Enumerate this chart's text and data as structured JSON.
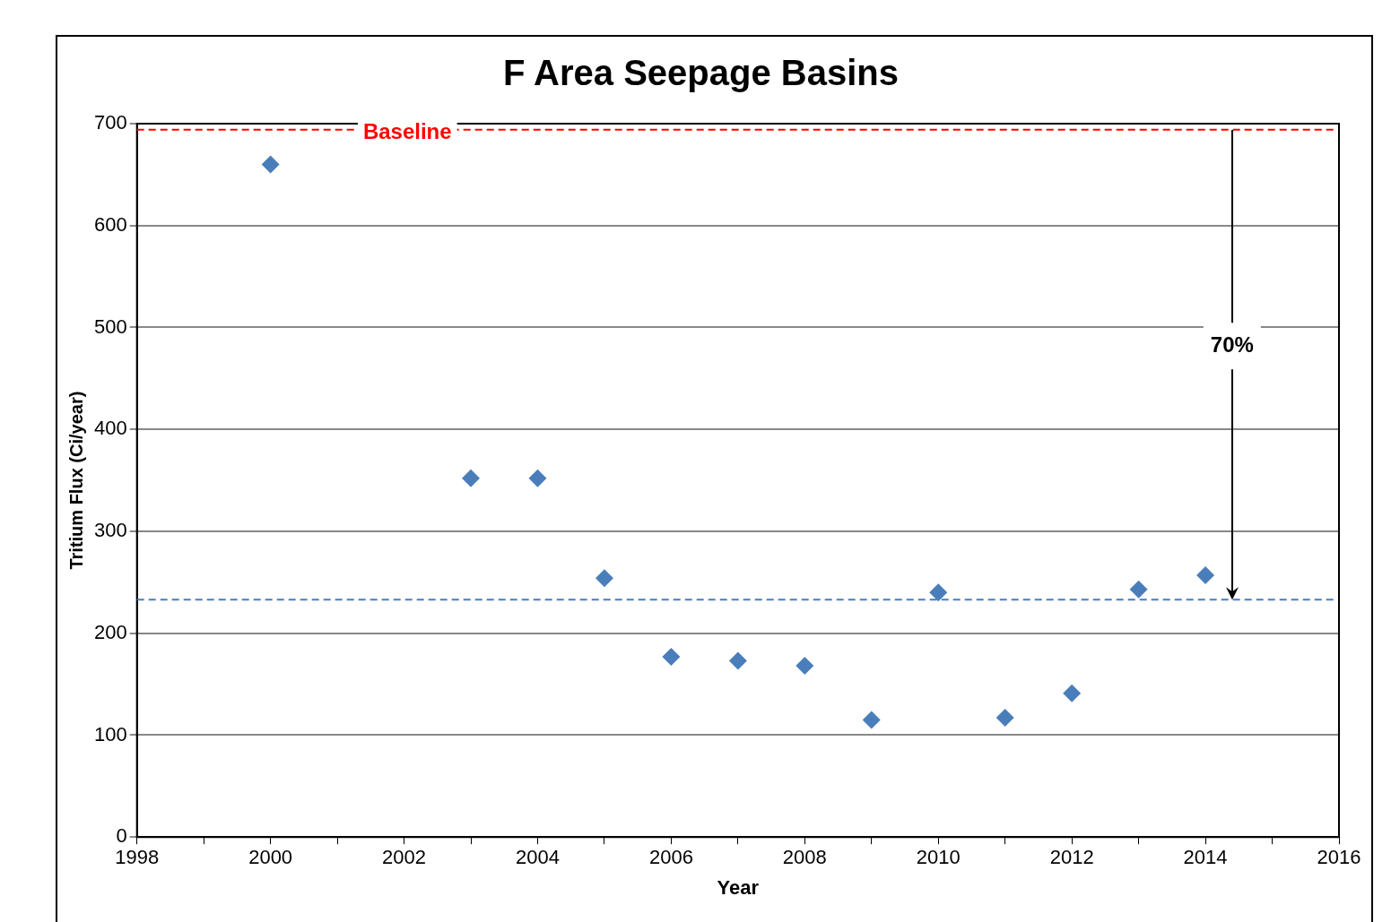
{
  "chart_data": {
    "type": "scatter",
    "title": "F Area Seepage Basins",
    "xlabel": "Year",
    "ylabel": "Tritium Flux (Ci/year)",
    "x": [
      2000,
      2003,
      2004,
      2005,
      2006,
      2007,
      2008,
      2009,
      2010,
      2011,
      2012,
      2013,
      2014
    ],
    "values": [
      660,
      352,
      352,
      254,
      177,
      173,
      168,
      115,
      240,
      117,
      141,
      243,
      257
    ],
    "color": "#4a7ebb",
    "marker": "diamond",
    "grid": "y",
    "legend": false,
    "xlim": [
      1998,
      2016
    ],
    "xticks": [
      1998,
      {
        "value": 1999,
        "label": null
      },
      2000,
      {
        "value": 2001,
        "label": null
      },
      2002,
      {
        "value": 2003,
        "label": null
      },
      2004,
      {
        "value": 2005,
        "label": null
      },
      2006,
      {
        "value": 2007,
        "label": null
      },
      2008,
      {
        "value": 2009,
        "label": null
      },
      2010,
      {
        "value": 2011,
        "label": null
      },
      2012,
      {
        "value": 2013,
        "label": null
      },
      2014,
      {
        "value": 2015,
        "label": null
      },
      2016
    ],
    "ylim": [
      0,
      700
    ],
    "yticks": [
      0,
      100,
      200,
      300,
      400,
      500,
      600,
      700
    ],
    "ref_lines": [
      {
        "axis": "y",
        "value": 694,
        "label": "Baseline",
        "color": "#ff0000",
        "line_style": "dashed"
      },
      {
        "axis": "y",
        "value": 233,
        "color": "#4a7ebb",
        "line_style": "dashed"
      }
    ],
    "annotations": [
      {
        "text": "70%",
        "x": 2014.4,
        "y": 233
      }
    ]
  }
}
